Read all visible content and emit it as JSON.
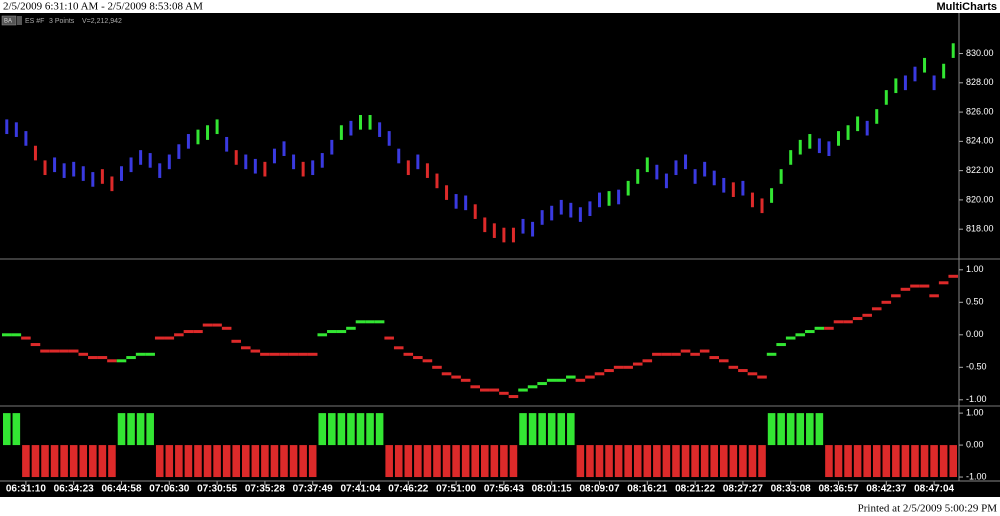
{
  "header": {
    "range": "2/5/2009 6:31:10 AM - 2/5/2009 8:53:08 AM",
    "brand": "MultiCharts"
  },
  "legend": {
    "badge": "BA",
    "symbol": "ES #F",
    "resolution": "3 Points",
    "volume": "V=2,212,942"
  },
  "footer": "Printed at 2/5/2009 5:00:29 PM",
  "chart_data": [
    {
      "type": "range_bar",
      "xlim": [
        -0.5,
        99.5
      ],
      "ylim": [
        816.1,
        832.7
      ],
      "yticks": [
        {
          "value": 818,
          "label": "818.00"
        },
        {
          "value": 820,
          "label": "820.00"
        },
        {
          "value": 822,
          "label": "822.00"
        },
        {
          "value": 824,
          "label": "824.00"
        },
        {
          "value": 826,
          "label": "826.00"
        },
        {
          "value": 828,
          "label": "828.00"
        },
        {
          "value": 830,
          "label": "830.00"
        }
      ],
      "high": [
        825.5,
        825.3,
        824.7,
        823.7,
        822.7,
        822.9,
        822.5,
        822.6,
        822.3,
        821.9,
        822.1,
        821.6,
        822.3,
        822.9,
        823.4,
        823.2,
        822.5,
        823.1,
        823.8,
        824.5,
        824.8,
        825.1,
        825.5,
        824.3,
        823.4,
        823.1,
        822.8,
        822.6,
        823.5,
        824.0,
        823.1,
        822.6,
        822.7,
        823.2,
        824.1,
        825.1,
        825.4,
        825.8,
        825.8,
        825.3,
        824.7,
        823.5,
        822.7,
        823.1,
        822.5,
        821.8,
        821.0,
        820.4,
        820.3,
        819.7,
        818.8,
        818.4,
        818.1,
        818.1,
        818.7,
        818.5,
        819.3,
        819.6,
        820.0,
        819.8,
        819.5,
        819.9,
        820.5,
        820.6,
        820.7,
        821.3,
        822.1,
        822.9,
        822.4,
        821.8,
        822.7,
        823.1,
        822.1,
        822.6,
        822.0,
        821.5,
        821.2,
        821.3,
        820.5,
        820.1,
        820.8,
        822.1,
        823.4,
        824.1,
        824.5,
        824.2,
        824.0,
        824.7,
        825.1,
        825.7,
        825.4,
        826.2,
        827.5,
        828.3,
        828.5,
        829.1,
        829.7,
        828.5,
        829.3,
        830.7
      ],
      "low": [
        824.5,
        824.3,
        823.7,
        822.7,
        821.7,
        821.9,
        821.5,
        821.6,
        821.3,
        820.9,
        821.1,
        820.6,
        821.3,
        821.9,
        822.4,
        822.2,
        821.5,
        822.1,
        822.8,
        823.5,
        823.8,
        824.1,
        824.5,
        823.3,
        822.4,
        822.1,
        821.8,
        821.6,
        822.5,
        823.0,
        822.1,
        821.6,
        821.7,
        822.2,
        823.1,
        824.1,
        824.4,
        824.8,
        824.8,
        824.3,
        823.7,
        822.5,
        821.7,
        822.1,
        821.5,
        820.8,
        820.0,
        819.4,
        819.3,
        818.7,
        817.8,
        817.4,
        817.1,
        817.1,
        817.7,
        817.5,
        818.3,
        818.6,
        819.0,
        818.8,
        818.5,
        818.9,
        819.5,
        819.6,
        819.7,
        820.3,
        821.1,
        821.9,
        821.4,
        820.8,
        821.7,
        822.1,
        821.1,
        821.6,
        821.0,
        820.5,
        820.2,
        820.3,
        819.5,
        819.1,
        819.8,
        821.1,
        822.4,
        823.1,
        823.5,
        823.2,
        823.0,
        823.7,
        824.1,
        824.7,
        824.4,
        825.2,
        826.5,
        827.3,
        827.5,
        828.1,
        828.7,
        827.5,
        828.3,
        829.7
      ],
      "colors": [
        "#3a3ae0",
        "#3a3ae0",
        "#3a3ae0",
        "#dd2a2a",
        "#dd2a2a",
        "#3a3ae0",
        "#3a3ae0",
        "#3a3ae0",
        "#3a3ae0",
        "#3a3ae0",
        "#dd2a2a",
        "#dd2a2a",
        "#3a3ae0",
        "#3a3ae0",
        "#3a3ae0",
        "#3a3ae0",
        "#3a3ae0",
        "#3a3ae0",
        "#3a3ae0",
        "#3a3ae0",
        "#33e633",
        "#33e633",
        "#33e633",
        "#3a3ae0",
        "#dd2a2a",
        "#3a3ae0",
        "#3a3ae0",
        "#dd2a2a",
        "#3a3ae0",
        "#3a3ae0",
        "#3a3ae0",
        "#dd2a2a",
        "#3a3ae0",
        "#3a3ae0",
        "#3a3ae0",
        "#33e633",
        "#3a3ae0",
        "#33e633",
        "#33e633",
        "#3a3ae0",
        "#3a3ae0",
        "#3a3ae0",
        "#dd2a2a",
        "#3a3ae0",
        "#dd2a2a",
        "#dd2a2a",
        "#dd2a2a",
        "#3a3ae0",
        "#3a3ae0",
        "#dd2a2a",
        "#dd2a2a",
        "#dd2a2a",
        "#dd2a2a",
        "#dd2a2a",
        "#3a3ae0",
        "#3a3ae0",
        "#3a3ae0",
        "#3a3ae0",
        "#3a3ae0",
        "#3a3ae0",
        "#3a3ae0",
        "#3a3ae0",
        "#3a3ae0",
        "#33e633",
        "#3a3ae0",
        "#33e633",
        "#33e633",
        "#33e633",
        "#3a3ae0",
        "#3a3ae0",
        "#3a3ae0",
        "#3a3ae0",
        "#3a3ae0",
        "#3a3ae0",
        "#3a3ae0",
        "#3a3ae0",
        "#dd2a2a",
        "#3a3ae0",
        "#dd2a2a",
        "#dd2a2a",
        "#33e633",
        "#33e633",
        "#33e633",
        "#33e633",
        "#33e633",
        "#3a3ae0",
        "#3a3ae0",
        "#33e633",
        "#33e633",
        "#33e633",
        "#3a3ae0",
        "#33e633",
        "#33e633",
        "#33e633",
        "#3a3ae0",
        "#3a3ae0",
        "#33e633",
        "#3a3ae0",
        "#33e633",
        "#33e633"
      ]
    },
    {
      "type": "step",
      "xlim": [
        -0.5,
        99.5
      ],
      "ylim": [
        -1.08,
        1.12
      ],
      "up_color": "#33e633",
      "down_color": "#dd2a2a",
      "yticks": [
        {
          "value": 1,
          "label": "1.00"
        },
        {
          "value": 0.5,
          "label": "0.50"
        },
        {
          "value": 0,
          "label": "0.00"
        },
        {
          "value": -0.5,
          "label": "-0.50"
        },
        {
          "value": -1,
          "label": "-1.00"
        }
      ],
      "values": [
        0,
        0,
        -0.05,
        -0.15,
        -0.25,
        -0.25,
        -0.25,
        -0.25,
        -0.3,
        -0.35,
        -0.35,
        -0.4,
        -0.4,
        -0.35,
        -0.3,
        -0.3,
        -0.05,
        -0.05,
        0,
        0.05,
        0.05,
        0.15,
        0.15,
        0.1,
        -0.1,
        -0.2,
        -0.25,
        -0.3,
        -0.3,
        -0.3,
        -0.3,
        -0.3,
        -0.3,
        0,
        0.05,
        0.05,
        0.1,
        0.2,
        0.2,
        0.2,
        -0.05,
        -0.2,
        -0.3,
        -0.35,
        -0.4,
        -0.5,
        -0.6,
        -0.65,
        -0.7,
        -0.8,
        -0.85,
        -0.85,
        -0.9,
        -0.95,
        -0.85,
        -0.8,
        -0.75,
        -0.7,
        -0.7,
        -0.65,
        -0.7,
        -0.65,
        -0.6,
        -0.55,
        -0.5,
        -0.5,
        -0.45,
        -0.4,
        -0.3,
        -0.3,
        -0.3,
        -0.25,
        -0.3,
        -0.25,
        -0.35,
        -0.4,
        -0.5,
        -0.55,
        -0.6,
        -0.65,
        -0.3,
        -0.15,
        -0.05,
        0,
        0.05,
        0.1,
        0.1,
        0.2,
        0.2,
        0.25,
        0.3,
        0.4,
        0.5,
        0.6,
        0.7,
        0.75,
        0.75,
        0.6,
        0.8,
        0.9
      ]
    },
    {
      "type": "bar",
      "xlim": [
        -0.5,
        99.5
      ],
      "ylim": [
        -1.03,
        1.16
      ],
      "up_color": "#33e633",
      "down_color": "#dd2a2a",
      "yticks": [
        {
          "value": 1,
          "label": "1.00"
        },
        {
          "value": 0,
          "label": "0.00"
        },
        {
          "value": -1,
          "label": "-1.00"
        }
      ],
      "values": [
        1,
        1,
        -1,
        -1,
        -1,
        -1,
        -1,
        -1,
        -1,
        -1,
        -1,
        -1,
        1,
        1,
        1,
        1,
        -1,
        -1,
        -1,
        -1,
        -1,
        -1,
        -1,
        -1,
        -1,
        -1,
        -1,
        -1,
        -1,
        -1,
        -1,
        -1,
        -1,
        1,
        1,
        1,
        1,
        1,
        1,
        1,
        -1,
        -1,
        -1,
        -1,
        -1,
        -1,
        -1,
        -1,
        -1,
        -1,
        -1,
        -1,
        -1,
        -1,
        1,
        1,
        1,
        1,
        1,
        1,
        -1,
        -1,
        -1,
        -1,
        -1,
        -1,
        -1,
        -1,
        -1,
        -1,
        -1,
        -1,
        -1,
        -1,
        -1,
        -1,
        -1,
        -1,
        -1,
        -1,
        1,
        1,
        1,
        1,
        1,
        1,
        -1,
        -1,
        -1,
        -1,
        -1,
        -1,
        -1,
        -1,
        -1,
        -1,
        -1,
        -1,
        -1,
        -1
      ],
      "xticks": [
        {
          "value": 2,
          "label": "06:31:10"
        },
        {
          "value": 7,
          "label": "06:34:23"
        },
        {
          "value": 12,
          "label": "06:44:58"
        },
        {
          "value": 17,
          "label": "07:06:30"
        },
        {
          "value": 22,
          "label": "07:30:55"
        },
        {
          "value": 27,
          "label": "07:35:28"
        },
        {
          "value": 32,
          "label": "07:37:49"
        },
        {
          "value": 37,
          "label": "07:41:04"
        },
        {
          "value": 42,
          "label": "07:46:22"
        },
        {
          "value": 47,
          "label": "07:51:00"
        },
        {
          "value": 52,
          "label": "07:56:43"
        },
        {
          "value": 57,
          "label": "08:01:15"
        },
        {
          "value": 62,
          "label": "08:09:07"
        },
        {
          "value": 67,
          "label": "08:16:21"
        },
        {
          "value": 72,
          "label": "08:21:22"
        },
        {
          "value": 77,
          "label": "08:27:27"
        },
        {
          "value": 82,
          "label": "08:33:08"
        },
        {
          "value": 87,
          "label": "08:36:57"
        },
        {
          "value": 92,
          "label": "08:42:37"
        },
        {
          "value": 97,
          "label": "08:47:04"
        }
      ]
    }
  ]
}
